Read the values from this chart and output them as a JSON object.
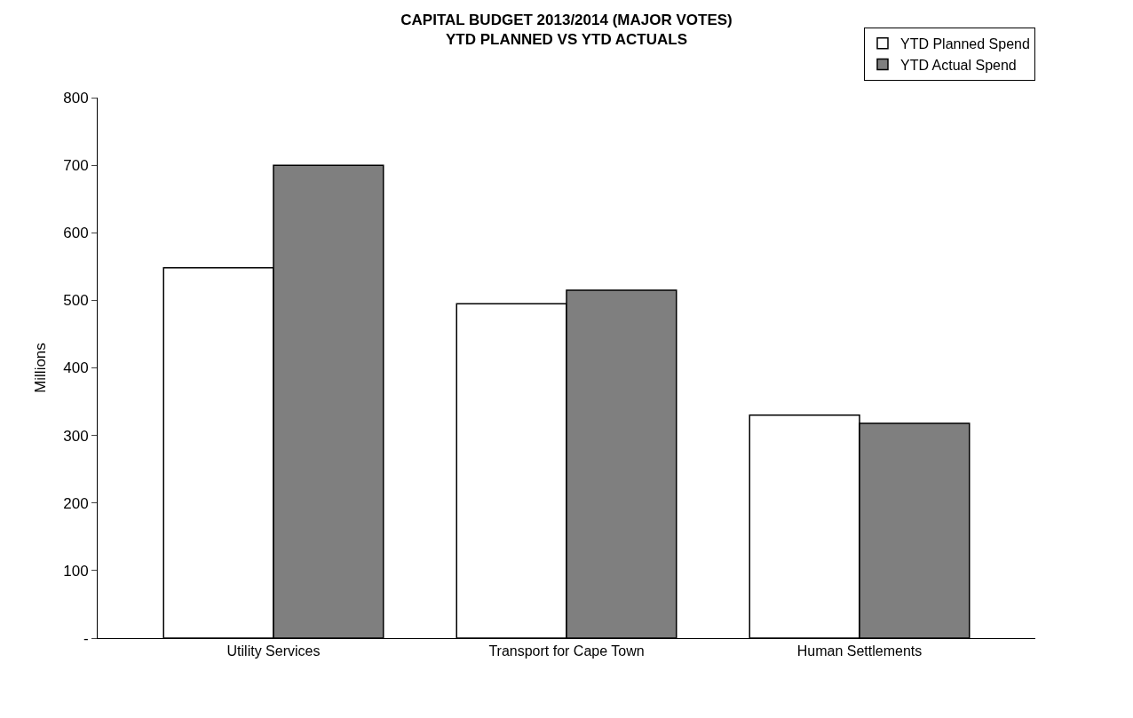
{
  "chart_data": {
    "type": "bar",
    "title": "CAPITAL BUDGET 2013/2014 (MAJOR VOTES)\nYTD PLANNED VS YTD ACTUALS",
    "ylabel": "Millions",
    "categories": [
      "Utility Services",
      "Transport for Cape Town",
      "Human Settlements"
    ],
    "series": [
      {
        "name": "YTD Planned Spend",
        "color": "#ffffff",
        "values": [
          548,
          495,
          330
        ]
      },
      {
        "name": "YTD Actual Spend",
        "color": "#7f7f7f",
        "values": [
          700,
          515,
          318
        ]
      }
    ],
    "ylim": [
      0,
      800
    ],
    "yticks": [
      {
        "value": 0,
        "label": "-"
      },
      100,
      200,
      300,
      400,
      500,
      600,
      700,
      800
    ],
    "legend": "top right"
  }
}
